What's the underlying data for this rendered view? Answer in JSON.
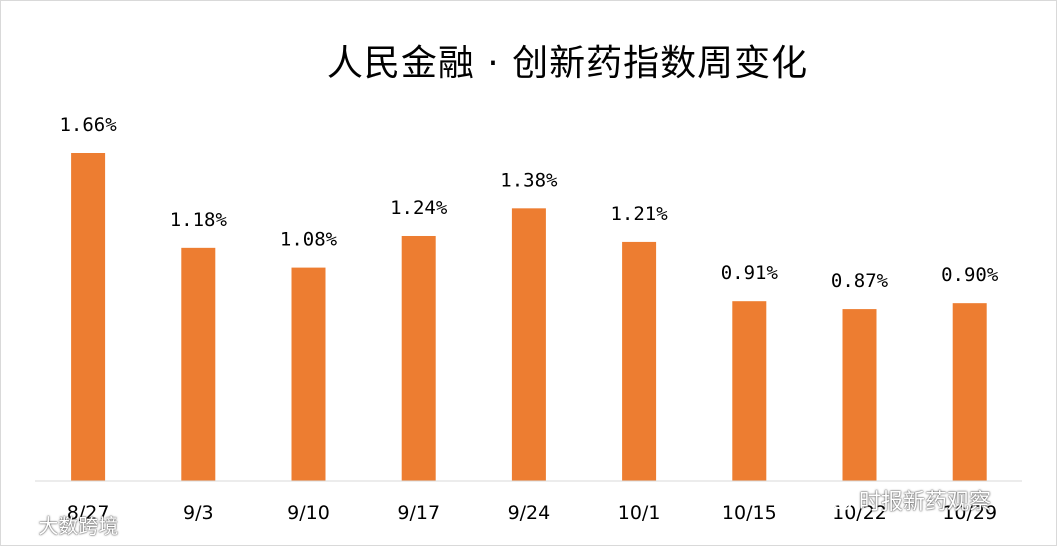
{
  "chart_data": {
    "type": "bar",
    "title": "人民金融 · 创新药指数周变化",
    "categories": [
      "8/27",
      "9/3",
      "9/10",
      "9/17",
      "9/24",
      "10/1",
      "10/15",
      "10/22",
      "10/29"
    ],
    "values": [
      1.66,
      1.18,
      1.08,
      1.24,
      1.38,
      1.21,
      0.91,
      0.87,
      0.9
    ],
    "value_labels": [
      "1.66%",
      "1.18%",
      "1.08%",
      "1.24%",
      "1.38%",
      "1.21%",
      "0.91%",
      "0.87%",
      "0.90%"
    ],
    "ylim": [
      0,
      1.66
    ],
    "bar_color": "#ED7D31",
    "grid": false,
    "legend": "none"
  },
  "watermarks": {
    "left": "大数跨境",
    "right": "时报新药观察"
  }
}
